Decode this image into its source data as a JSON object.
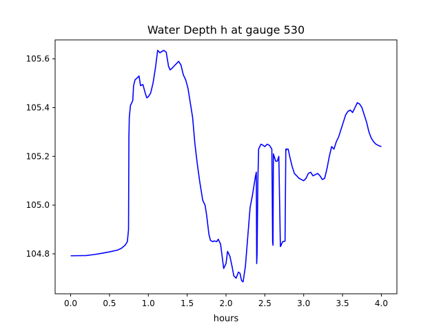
{
  "chart_data": {
    "type": "line",
    "title": "Water Depth h at gauge 530",
    "xlabel": "hours",
    "ylabel": "",
    "xlim": [
      -0.2,
      4.2
    ],
    "ylim": [
      104.636,
      105.678
    ],
    "xticks": [
      0.0,
      0.5,
      1.0,
      1.5,
      2.0,
      2.5,
      3.0,
      3.5,
      4.0
    ],
    "xtick_labels": [
      "0.0",
      "0.5",
      "1.0",
      "1.5",
      "2.0",
      "2.5",
      "3.0",
      "3.5",
      "4.0"
    ],
    "yticks": [
      104.8,
      105.0,
      105.2,
      105.4,
      105.6
    ],
    "ytick_labels": [
      "104.8",
      "105.0",
      "105.2",
      "105.4",
      "105.6"
    ],
    "grid": false,
    "series": [
      {
        "color": "#0000ff",
        "x": [
          0.0,
          0.2,
          0.3,
          0.4,
          0.5,
          0.6,
          0.65,
          0.7,
          0.73,
          0.745,
          0.75,
          0.755,
          0.77,
          0.78,
          0.8,
          0.81,
          0.83,
          0.85,
          0.88,
          0.9,
          0.93,
          0.96,
          0.98,
          1.0,
          1.03,
          1.06,
          1.09,
          1.12,
          1.15,
          1.17,
          1.2,
          1.23,
          1.26,
          1.28,
          1.3,
          1.33,
          1.36,
          1.39,
          1.42,
          1.45,
          1.48,
          1.51,
          1.54,
          1.57,
          1.6,
          1.63,
          1.66,
          1.7,
          1.73,
          1.75,
          1.78,
          1.8,
          1.83,
          1.85,
          1.88,
          1.9,
          1.93,
          1.95,
          1.97,
          2.0,
          2.02,
          2.05,
          2.08,
          2.1,
          2.13,
          2.16,
          2.18,
          2.2,
          2.22,
          2.25,
          2.28,
          2.31,
          2.34,
          2.36,
          2.38,
          2.39,
          2.395,
          2.4,
          2.41,
          2.42,
          2.45,
          2.48,
          2.5,
          2.53,
          2.56,
          2.59,
          2.6,
          2.605,
          2.61,
          2.62,
          2.64,
          2.66,
          2.68,
          2.7,
          2.71,
          2.715,
          2.73,
          2.76,
          2.77,
          2.775,
          2.78,
          2.8,
          2.82,
          2.85,
          2.88,
          2.91,
          2.94,
          2.97,
          3.0,
          3.03,
          3.06,
          3.09,
          3.12,
          3.15,
          3.18,
          3.21,
          3.24,
          3.27,
          3.3,
          3.33,
          3.36,
          3.39,
          3.42,
          3.45,
          3.48,
          3.51,
          3.54,
          3.57,
          3.6,
          3.63,
          3.66,
          3.69,
          3.72,
          3.75,
          3.78,
          3.81,
          3.84,
          3.87,
          3.9,
          3.93,
          3.96,
          4.0
        ],
        "y": [
          104.792,
          104.793,
          104.797,
          104.802,
          104.808,
          104.815,
          104.822,
          104.835,
          104.85,
          104.9,
          105.28,
          105.36,
          105.41,
          105.415,
          105.43,
          105.49,
          105.515,
          105.52,
          105.53,
          105.49,
          105.495,
          105.46,
          105.44,
          105.445,
          105.46,
          105.5,
          105.56,
          105.635,
          105.625,
          105.63,
          105.635,
          105.628,
          105.57,
          105.555,
          105.56,
          105.57,
          105.58,
          105.59,
          105.575,
          105.535,
          105.515,
          105.48,
          105.42,
          105.36,
          105.25,
          105.17,
          105.1,
          105.02,
          105.0,
          104.96,
          104.88,
          104.855,
          104.85,
          104.853,
          104.85,
          104.86,
          104.84,
          104.79,
          104.74,
          104.76,
          104.81,
          104.79,
          104.745,
          104.71,
          104.7,
          104.725,
          104.72,
          104.69,
          104.685,
          104.75,
          104.87,
          104.99,
          105.04,
          105.08,
          105.12,
          105.135,
          104.76,
          104.8,
          105.1,
          105.23,
          105.25,
          105.245,
          105.24,
          105.25,
          105.245,
          105.23,
          104.85,
          104.835,
          105.21,
          105.2,
          105.18,
          105.18,
          105.2,
          104.83,
          104.835,
          104.84,
          104.85,
          104.852,
          105.23,
          105.225,
          105.23,
          105.23,
          105.2,
          105.16,
          105.13,
          105.12,
          105.11,
          105.105,
          105.1,
          105.11,
          105.13,
          105.135,
          105.12,
          105.125,
          105.13,
          105.12,
          105.105,
          105.11,
          105.15,
          105.2,
          105.24,
          105.23,
          105.26,
          105.28,
          105.31,
          105.34,
          105.37,
          105.385,
          105.39,
          105.38,
          105.4,
          105.42,
          105.415,
          105.4,
          105.37,
          105.34,
          105.3,
          105.275,
          105.26,
          105.25,
          105.245,
          105.24
        ]
      }
    ]
  }
}
